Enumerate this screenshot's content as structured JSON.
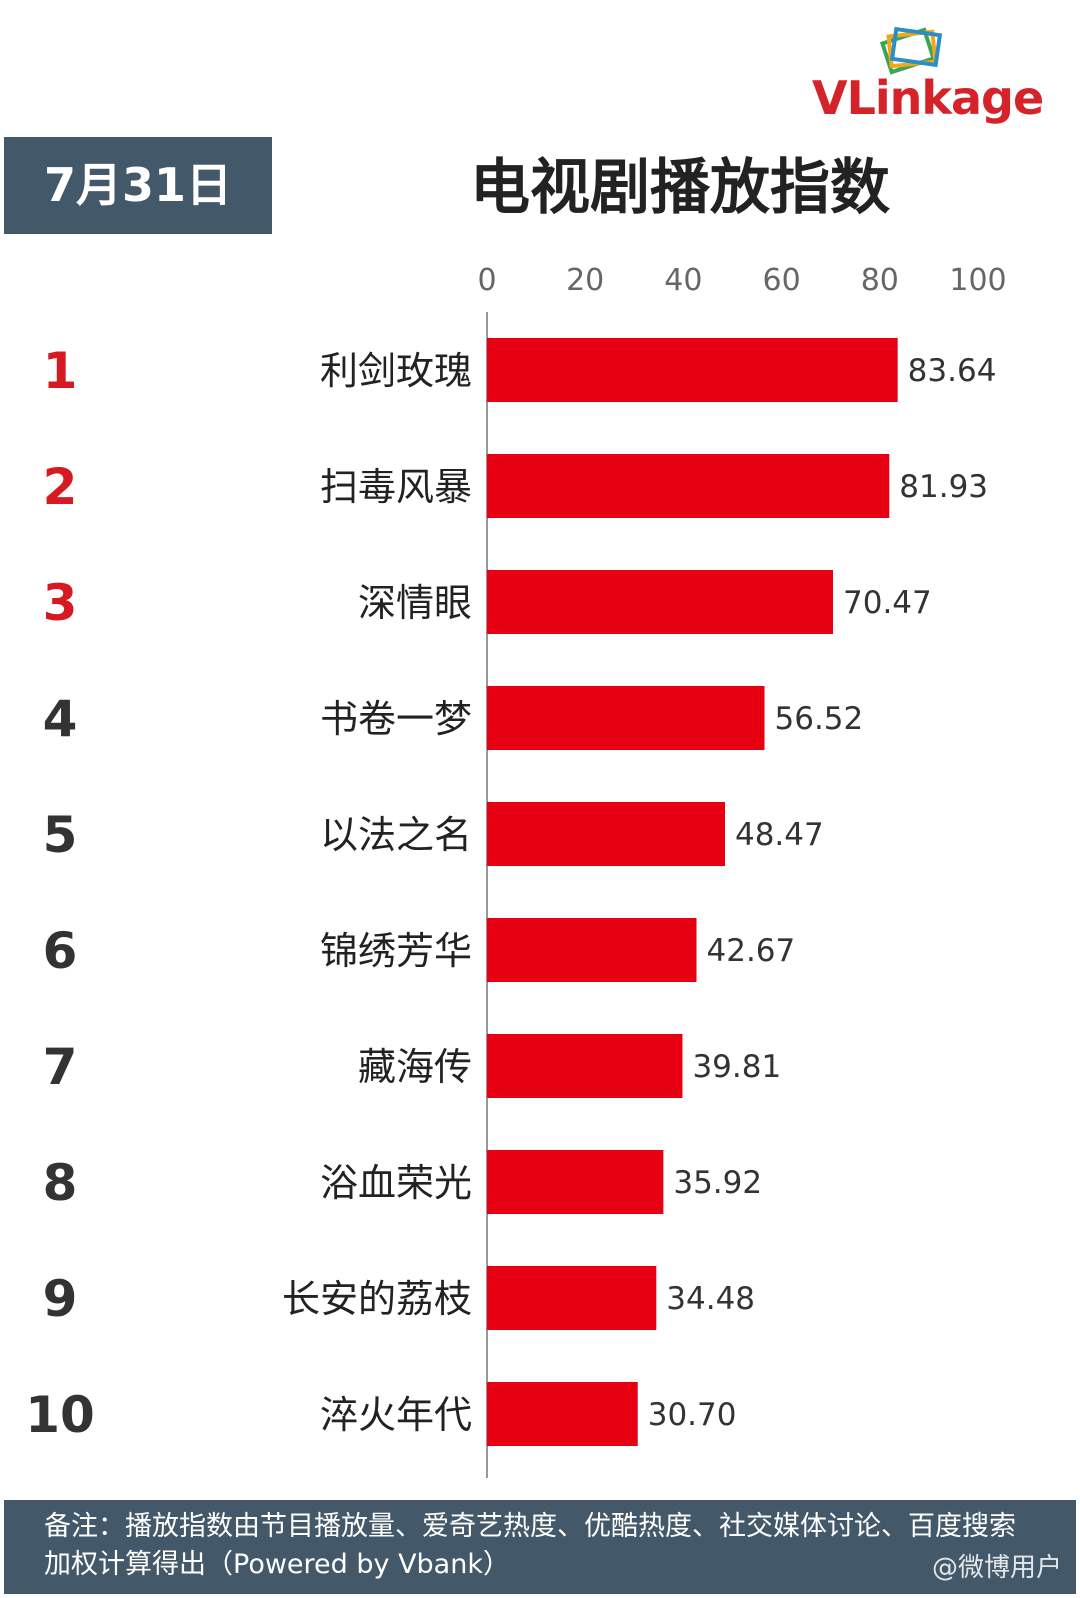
{
  "logo": {
    "text": "VLinkage"
  },
  "header": {
    "date": "7月31日",
    "title": "电视剧播放指数"
  },
  "footer": {
    "note": "备注：播放指数由节目播放量、爱奇艺热度、优酷热度、社交媒体讨论、百度搜索加权计算得出（Powered by Vbank）"
  },
  "watermark": "@微博用户",
  "colors": {
    "bar": "#e60012",
    "top_rank": "#d71a21",
    "rank": "#333333",
    "panel": "#435869",
    "axis": "#999999"
  },
  "chart_data": {
    "type": "bar",
    "orientation": "horizontal",
    "title": "电视剧播放指数",
    "xlim": [
      0,
      100
    ],
    "x_ticks": [
      0,
      20,
      40,
      60,
      80,
      100
    ],
    "ranks": [
      "1",
      "2",
      "3",
      "4",
      "5",
      "6",
      "7",
      "8",
      "9",
      "10"
    ],
    "categories": [
      "利剑玫瑰",
      "扫毒风暴",
      "深情眼",
      "书卷一梦",
      "以法之名",
      "锦绣芳华",
      "藏海传",
      "浴血荣光",
      "长安的荔枝",
      "淬火年代"
    ],
    "values": [
      83.64,
      81.93,
      70.47,
      56.52,
      48.47,
      42.67,
      39.81,
      35.92,
      34.48,
      30.7
    ],
    "value_labels": [
      "83.64",
      "81.93",
      "70.47",
      "56.52",
      "48.47",
      "42.67",
      "39.81",
      "35.92",
      "34.48",
      "30.70"
    ],
    "highlight_top": 3,
    "grid": false,
    "legend": "none"
  }
}
